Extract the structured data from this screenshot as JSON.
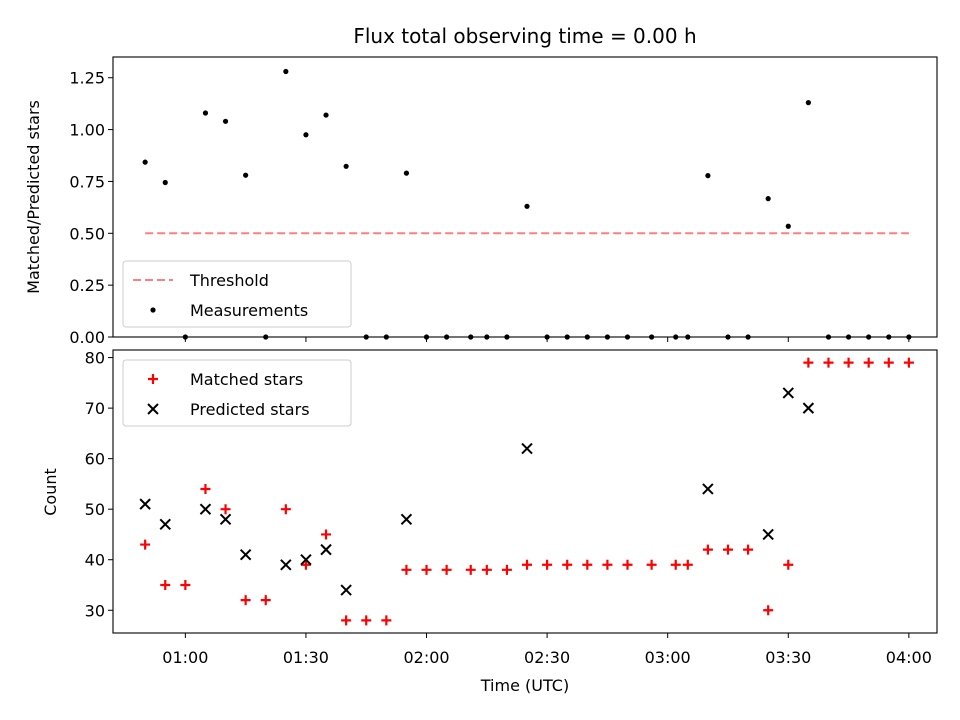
{
  "chart_data": [
    {
      "type": "scatter",
      "title": "Flux total observing time = 0.00 h",
      "xlabel": "",
      "ylabel": "Matched/Predicted stars",
      "ylim": [
        0,
        1.35
      ],
      "xlim": [
        "00:42",
        "04:07"
      ],
      "yticks": [
        "0.00",
        "0.25",
        "0.50",
        "0.75",
        "1.00",
        "1.25"
      ],
      "ytick_values": [
        0,
        0.25,
        0.5,
        0.75,
        1.0,
        1.25
      ],
      "xticks": [
        "01:00",
        "01:30",
        "02:00",
        "02:30",
        "03:00",
        "03:30",
        "04:00"
      ],
      "legend_position": "lower-left",
      "series": [
        {
          "name": "Threshold",
          "kind": "dashed-line",
          "color": "#ff7f7f",
          "x": [
            "00:50",
            "04:00"
          ],
          "values": [
            0.5,
            0.5
          ]
        },
        {
          "name": "Measurements",
          "kind": "points",
          "color": "#000000",
          "x": [
            "00:50",
            "00:55",
            "01:00",
            "01:05",
            "01:10",
            "01:15",
            "01:20",
            "01:25",
            "01:30",
            "01:35",
            "01:40",
            "01:45",
            "01:50",
            "01:55",
            "02:00",
            "02:05",
            "02:11",
            "02:15",
            "02:20",
            "02:25",
            "02:30",
            "02:35",
            "02:40",
            "02:45",
            "02:50",
            "02:56",
            "03:02",
            "03:05",
            "03:10",
            "03:15",
            "03:20",
            "03:25",
            "03:30",
            "03:35",
            "03:40",
            "03:45",
            "03:50",
            "03:55",
            "04:00"
          ],
          "values": [
            0.843,
            0.745,
            0.0,
            1.08,
            1.04,
            0.78,
            0.0,
            1.28,
            0.975,
            1.07,
            0.823,
            0.0,
            0.0,
            0.79,
            0.0,
            0.0,
            0.0,
            0.0,
            0.0,
            0.63,
            0.0,
            0.0,
            0.0,
            0.0,
            0.0,
            0.0,
            0.0,
            0.0,
            0.778,
            0.0,
            0.0,
            0.667,
            0.534,
            1.13,
            0.0,
            0.0,
            0.0,
            0.0,
            0.0
          ]
        }
      ]
    },
    {
      "type": "scatter",
      "title": "",
      "xlabel": "Time (UTC)",
      "ylabel": "Count",
      "ylim": [
        25.5,
        81.5
      ],
      "xlim": [
        "00:42",
        "04:07"
      ],
      "yticks": [
        "30",
        "40",
        "50",
        "60",
        "70",
        "80"
      ],
      "ytick_values": [
        30,
        40,
        50,
        60,
        70,
        80
      ],
      "xticks": [
        "01:00",
        "01:30",
        "02:00",
        "02:30",
        "03:00",
        "03:30",
        "04:00"
      ],
      "legend_position": "upper-left",
      "series": [
        {
          "name": "Matched stars",
          "kind": "plus",
          "color": "#ff0000",
          "x": [
            "00:50",
            "00:55",
            "01:00",
            "01:05",
            "01:10",
            "01:15",
            "01:20",
            "01:25",
            "01:30",
            "01:35",
            "01:40",
            "01:45",
            "01:50",
            "01:55",
            "02:00",
            "02:05",
            "02:11",
            "02:15",
            "02:20",
            "02:25",
            "02:30",
            "02:35",
            "02:40",
            "02:45",
            "02:50",
            "02:56",
            "03:02",
            "03:05",
            "03:10",
            "03:15",
            "03:20",
            "03:25",
            "03:30",
            "03:35",
            "03:40",
            "03:45",
            "03:50",
            "03:55",
            "04:00"
          ],
          "values": [
            43,
            35,
            35,
            54,
            50,
            32,
            32,
            50,
            39,
            45,
            28,
            28,
            28,
            38,
            38,
            38,
            38,
            38,
            38,
            39,
            39,
            39,
            39,
            39,
            39,
            39,
            39,
            39,
            42,
            42,
            42,
            30,
            39,
            79,
            79,
            79,
            79,
            79,
            79
          ]
        },
        {
          "name": "Predicted stars",
          "kind": "cross",
          "color": "#000000",
          "x": [
            "00:50",
            "00:55",
            "01:05",
            "01:10",
            "01:15",
            "01:25",
            "01:30",
            "01:35",
            "01:40",
            "01:55",
            "02:25",
            "03:10",
            "03:25",
            "03:30",
            "03:35"
          ],
          "values": [
            51,
            47,
            50,
            48,
            41,
            39,
            40,
            42,
            34,
            48,
            62,
            54,
            45,
            73,
            70
          ]
        }
      ]
    }
  ]
}
